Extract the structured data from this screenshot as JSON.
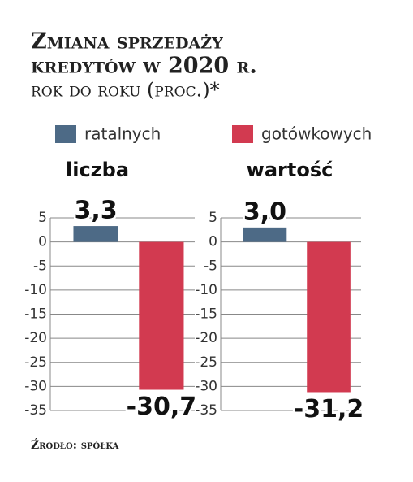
{
  "header": {
    "title": [
      "Zmiana sprzedaży",
      "kredytów w 2020 r."
    ],
    "subtitle": "rok do roku (proc.)*"
  },
  "legend": [
    {
      "name": "ratalnych",
      "color": "#4d6a86"
    },
    {
      "name": "gotówkowych",
      "color": "#d23a50"
    }
  ],
  "chart_data": [
    {
      "type": "bar",
      "title": "liczba",
      "values": [
        3.3,
        -30.7
      ],
      "value_labels": [
        "3,3",
        "-30,7"
      ],
      "ylim": [
        -35,
        5
      ],
      "yticks": [
        5,
        0,
        -5,
        -10,
        -15,
        -20,
        -25,
        -30,
        -35
      ],
      "grid": true
    },
    {
      "type": "bar",
      "title": "wartość",
      "values": [
        3.0,
        -31.2
      ],
      "value_labels": [
        "3,0",
        "-31,2"
      ],
      "ylim": [
        -35,
        5
      ],
      "yticks": [
        5,
        0,
        -5,
        -10,
        -15,
        -20,
        -25,
        -30,
        -35
      ],
      "grid": true
    }
  ],
  "source": "Źródło: spółka"
}
